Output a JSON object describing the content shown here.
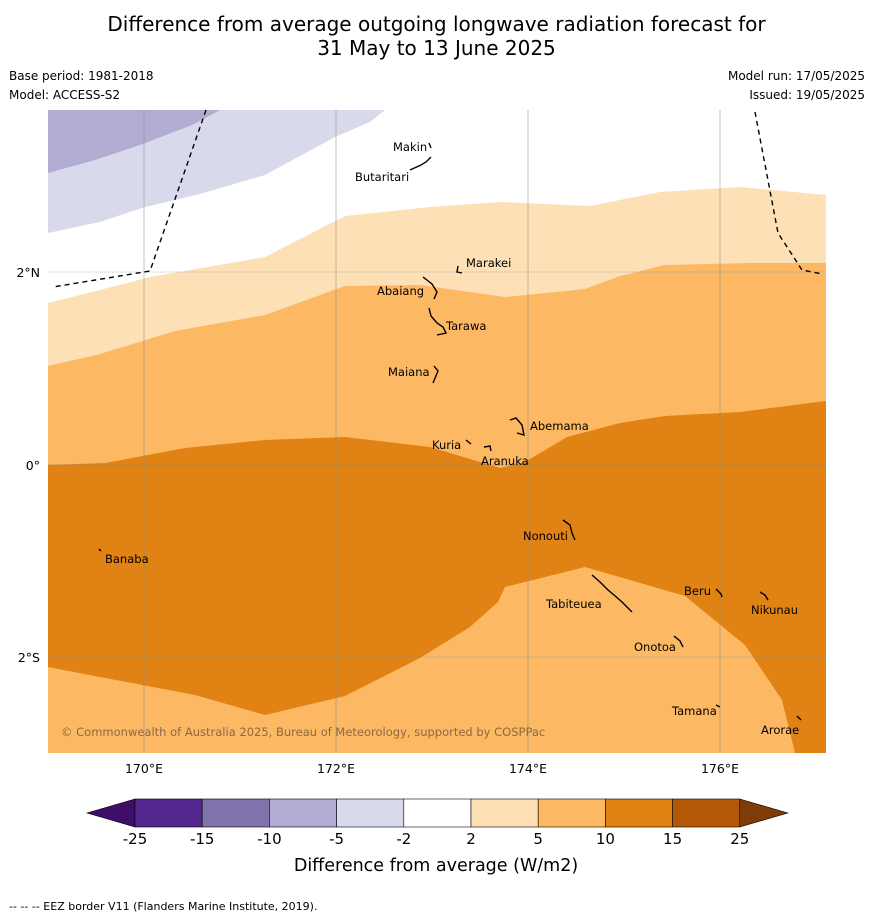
{
  "title_line1": "Difference from average outgoing longwave radiation forecast for",
  "title_line2": "31 May to 13 June 2025",
  "base_period": "Base period: 1981-2018",
  "model": "Model: ACCESS-S2",
  "model_run": "Model run: 17/05/2025",
  "issued": "Issued: 19/05/2025",
  "lat_labels": [
    "2°N",
    "0°",
    "2°S"
  ],
  "lon_labels": [
    "170°E",
    "172°E",
    "174°E",
    "176°E"
  ],
  "places": [
    "Makin",
    "Butaritari",
    "Marakei",
    "Abaiang",
    "Tarawa",
    "Maiana",
    "Abemama",
    "Kuria",
    "Aranuka",
    "Nonouti",
    "Banaba",
    "Beru",
    "Nikunau",
    "Tabiteuea",
    "Onotoa",
    "Tamana",
    "Arorae"
  ],
  "copyright": "© Commonwealth of Australia 2025, Bureau of Meteorology, supported by COSPPac",
  "colorbar": {
    "ticks": [
      "-25",
      "-15",
      "-10",
      "-5",
      "-2",
      "2",
      "5",
      "10",
      "15",
      "25"
    ],
    "colors": [
      "#3f0e6b",
      "#54278f",
      "#8073ac",
      "#b2abd2",
      "#d8daeb",
      "#ffffff",
      "#fee0b6",
      "#fdb863",
      "#e08214",
      "#b35806",
      "#7f3b08"
    ],
    "label": "Difference from average (W/m2)"
  },
  "footnote": "--  --  -- EEZ border V11 (Flanders Marine Institute, 2019)."
}
